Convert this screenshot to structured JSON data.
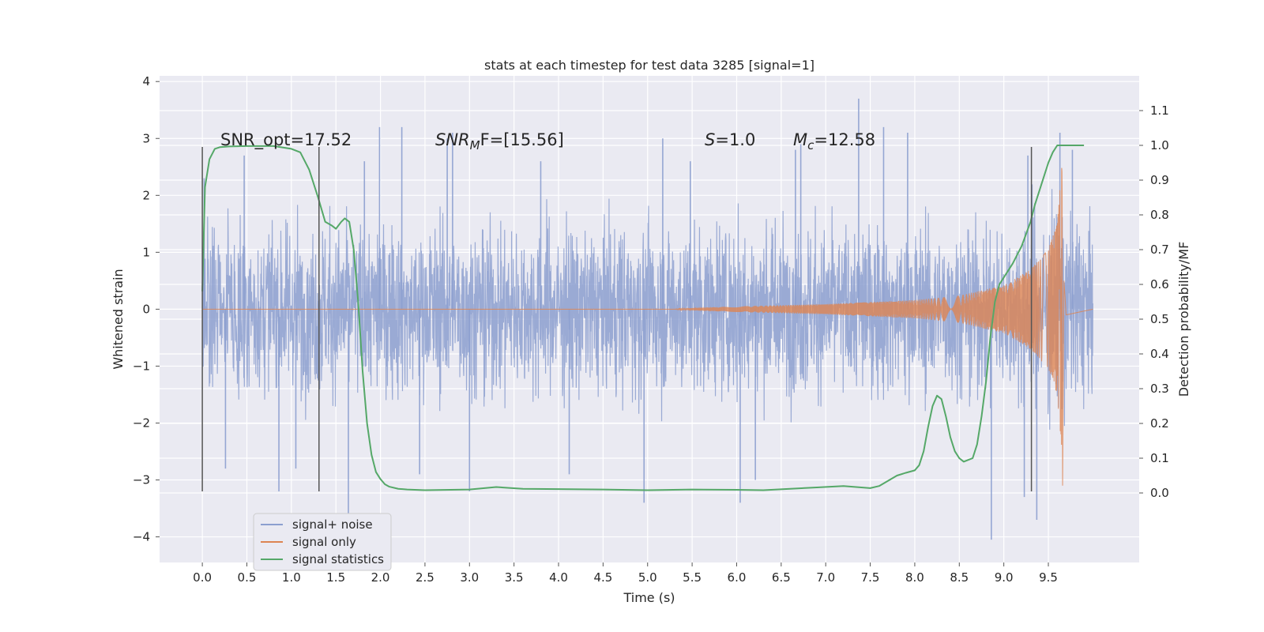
{
  "chart_data": {
    "type": "line",
    "title": "stats at each timestep for test data 3285 [signal=1]",
    "xlabel": "Time (s)",
    "ylabel_left": "Whitened strain",
    "ylabel_right": "Detection probability/MF",
    "xlim": [
      -0.48,
      10.52
    ],
    "ylim_left": [
      -4.45,
      4.1
    ],
    "ylim_right": [
      -0.2,
      1.2
    ],
    "x_ticks": [
      0.0,
      0.5,
      1.0,
      1.5,
      2.0,
      2.5,
      3.0,
      3.5,
      4.0,
      4.5,
      5.0,
      5.5,
      6.0,
      6.5,
      7.0,
      7.5,
      8.0,
      8.5,
      9.0,
      9.5
    ],
    "x_tick_labels": [
      "0.0",
      "0.5",
      "1.0",
      "1.5",
      "2.0",
      "2.5",
      "3.0",
      "3.5",
      "4.0",
      "4.5",
      "5.0",
      "5.5",
      "6.0",
      "6.5",
      "7.0",
      "7.5",
      "8.0",
      "8.5",
      "9.0",
      "9.5"
    ],
    "y_left_ticks": [
      -4,
      -3,
      -2,
      -1,
      0,
      1,
      2,
      3,
      4
    ],
    "y_left_tick_labels": [
      "−4",
      "−3",
      "−2",
      "−1",
      "0",
      "1",
      "2",
      "3",
      "4"
    ],
    "y_right_ticks": [
      0.0,
      0.1,
      0.2,
      0.3,
      0.4,
      0.5,
      0.6,
      0.7,
      0.8,
      0.9,
      1.0,
      1.1
    ],
    "y_right_tick_labels": [
      "0.0",
      "0.1",
      "0.2",
      "0.3",
      "0.4",
      "0.5",
      "0.6",
      "0.7",
      "0.8",
      "0.9",
      "1.0",
      "1.1"
    ],
    "grid": true,
    "legend": {
      "position": "lower-left",
      "entries": [
        "signal+ noise",
        "signal only",
        "signal statistics"
      ]
    },
    "colors": {
      "background": "#eaeaf2",
      "grid": "#ffffff",
      "noise": "#8c9fcf",
      "signal": "#dd8452",
      "stat": "#55a868",
      "vline": "#555555"
    },
    "annotations": {
      "snr_opt": "SNR_opt=17.52",
      "snr_mf_base": "SNR",
      "snr_mf_sub": "M",
      "snr_mf_rest": "F=[15.56]",
      "s_italic": "S",
      "s_rest": "=1.0",
      "mc_base": "M",
      "mc_sub": "c",
      "mc_rest": "=12.58"
    },
    "vertical_lines_x": [
      0.0,
      1.31,
      9.31
    ],
    "vertical_lines_range": [
      -3.2,
      2.85
    ],
    "series": [
      {
        "name": "signal+ noise",
        "kind": "noise",
        "x_range": [
          0.0,
          10.0
        ],
        "envelope": [
          [
            0.0,
            1.7
          ],
          [
            9.0,
            1.7
          ],
          [
            9.7,
            2.2
          ],
          [
            10.0,
            1.8
          ]
        ],
        "spikes_up": [
          [
            0.02,
            2.3
          ],
          [
            0.47,
            2.7
          ],
          [
            1.82,
            2.6
          ],
          [
            1.99,
            3.2
          ],
          [
            2.24,
            3.2
          ],
          [
            2.75,
            3.0
          ],
          [
            2.81,
            3.1
          ],
          [
            3.8,
            2.6
          ],
          [
            5.17,
            3.0
          ],
          [
            5.48,
            2.6
          ],
          [
            6.66,
            2.8
          ],
          [
            6.72,
            2.9
          ],
          [
            7.37,
            3.7
          ],
          [
            7.65,
            3.2
          ],
          [
            7.92,
            3.1
          ],
          [
            9.27,
            2.7
          ],
          [
            9.63,
            3.1
          ],
          [
            9.77,
            2.8
          ]
        ],
        "spikes_down": [
          [
            0.26,
            -2.8
          ],
          [
            0.86,
            -3.2
          ],
          [
            1.05,
            -2.8
          ],
          [
            1.64,
            -3.6
          ],
          [
            2.44,
            -2.9
          ],
          [
            3.0,
            -3.2
          ],
          [
            4.12,
            -2.9
          ],
          [
            4.96,
            -3.4
          ],
          [
            6.04,
            -3.4
          ],
          [
            6.21,
            -3.0
          ],
          [
            8.86,
            -4.05
          ],
          [
            9.23,
            -3.3
          ],
          [
            9.37,
            -3.7
          ]
        ]
      },
      {
        "name": "signal only",
        "kind": "chirp",
        "x_range": [
          0.0,
          10.0
        ],
        "merger_time": 9.655,
        "amplitude_points": [
          [
            5.3,
            0.0
          ],
          [
            5.5,
            0.02
          ],
          [
            6.0,
            0.05
          ],
          [
            7.0,
            0.09
          ],
          [
            8.0,
            0.16
          ],
          [
            8.5,
            0.24
          ],
          [
            9.0,
            0.42
          ],
          [
            9.3,
            0.7
          ],
          [
            9.5,
            1.05
          ],
          [
            9.6,
            1.5
          ],
          [
            9.655,
            2.6
          ]
        ],
        "ringdown": [
          [
            9.66,
            -3.1
          ],
          [
            9.675,
            0.5
          ],
          [
            9.7,
            -0.1
          ],
          [
            10.0,
            0.0
          ]
        ]
      },
      {
        "name": "signal statistics",
        "kind": "stat",
        "axis": "right",
        "x": [
          0.0,
          0.03,
          0.08,
          0.14,
          0.2,
          0.3,
          0.5,
          0.8,
          1.0,
          1.1,
          1.2,
          1.3,
          1.38,
          1.45,
          1.5,
          1.56,
          1.6,
          1.65,
          1.7,
          1.75,
          1.8,
          1.85,
          1.9,
          1.95,
          2.0,
          2.05,
          2.1,
          2.2,
          2.3,
          2.5,
          3.0,
          3.3,
          3.6,
          4.0,
          4.5,
          5.0,
          5.5,
          6.0,
          6.3,
          6.6,
          6.9,
          7.2,
          7.5,
          7.6,
          7.7,
          7.8,
          7.9,
          8.0,
          8.05,
          8.1,
          8.15,
          8.2,
          8.25,
          8.3,
          8.35,
          8.4,
          8.45,
          8.5,
          8.55,
          8.6,
          8.65,
          8.7,
          8.75,
          8.8,
          8.85,
          8.9,
          8.95,
          9.0,
          9.1,
          9.2,
          9.3,
          9.35,
          9.4,
          9.45,
          9.5,
          9.55,
          9.6,
          9.65,
          9.7,
          9.9
        ],
        "y": [
          0.58,
          0.88,
          0.96,
          0.99,
          0.995,
          0.997,
          0.998,
          0.998,
          0.99,
          0.98,
          0.93,
          0.85,
          0.78,
          0.77,
          0.76,
          0.78,
          0.79,
          0.78,
          0.7,
          0.55,
          0.35,
          0.2,
          0.11,
          0.06,
          0.04,
          0.025,
          0.018,
          0.012,
          0.01,
          0.008,
          0.01,
          0.017,
          0.012,
          0.011,
          0.01,
          0.008,
          0.01,
          0.009,
          0.008,
          0.012,
          0.016,
          0.02,
          0.014,
          0.02,
          0.035,
          0.05,
          0.058,
          0.065,
          0.08,
          0.12,
          0.19,
          0.25,
          0.28,
          0.27,
          0.22,
          0.16,
          0.12,
          0.1,
          0.09,
          0.095,
          0.1,
          0.14,
          0.22,
          0.32,
          0.45,
          0.55,
          0.6,
          0.62,
          0.66,
          0.71,
          0.78,
          0.83,
          0.87,
          0.91,
          0.95,
          0.98,
          1.0,
          1.0,
          1.0,
          1.0
        ]
      }
    ]
  }
}
